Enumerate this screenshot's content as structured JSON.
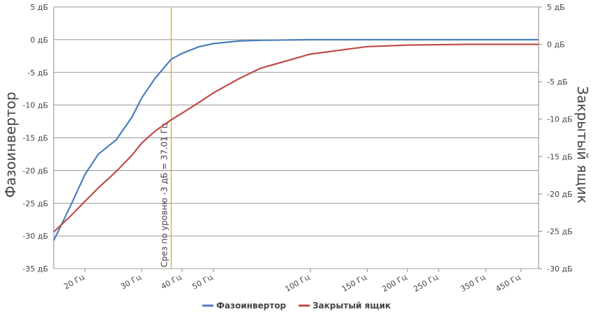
{
  "chart_data": {
    "type": "line",
    "log_x": true,
    "grid": true,
    "legend": "bottom",
    "y_label": "Фазоинвертор",
    "y2_label": "Закрытый ящик",
    "x": [
      16,
      18,
      20,
      22,
      25,
      28,
      30,
      33,
      37,
      40,
      45,
      50,
      60,
      70,
      100,
      150,
      200,
      300,
      510
    ],
    "series": [
      {
        "name": "Фазоинвертор",
        "color": "#4a7ebb",
        "axis": "y",
        "values": [
          -30.7,
          -25.5,
          -20.6,
          -17.5,
          -15.3,
          -11.8,
          -8.9,
          -5.9,
          -3,
          -2.1,
          -1.1,
          -0.6,
          -0.2,
          -0.1,
          0,
          0,
          0,
          0,
          0
        ]
      },
      {
        "name": "Закрытый ящик",
        "color": "#be4b48",
        "axis": "y2",
        "values": [
          -25.1,
          -23,
          -21,
          -19.2,
          -17,
          -14.8,
          -13.2,
          -11.6,
          -10.1,
          -9.2,
          -7.8,
          -6.5,
          -4.6,
          -3.2,
          -1.3,
          -0.3,
          -0.1,
          0,
          0
        ]
      }
    ],
    "cutoff": {
      "x": 37.01,
      "color": "#e0a030",
      "label": "Срез по уровню -3 дБ = 37.01 Гц"
    },
    "xlim": [
      16,
      510
    ],
    "xticks": [
      {
        "value": 20,
        "label": "20 Гц"
      },
      {
        "value": 30,
        "label": "30 Гц"
      },
      {
        "value": 40,
        "label": "40 Гц"
      },
      {
        "value": 50,
        "label": "50 Гц"
      },
      {
        "value": 100,
        "label": "100 Гц"
      },
      {
        "value": 150,
        "label": "150 Гц"
      },
      {
        "value": 200,
        "label": "200 Гц"
      },
      {
        "value": 250,
        "label": "250 Гц"
      },
      {
        "value": 350,
        "label": "350 Гц"
      },
      {
        "value": 450,
        "label": "450 Гц"
      }
    ],
    "ylim": [
      -35,
      5
    ],
    "yticks": [
      {
        "value": 5,
        "label": "5 дБ"
      },
      {
        "value": 0,
        "label": "0 дБ"
      },
      {
        "value": -5,
        "label": "-5 дБ"
      },
      {
        "value": -10,
        "label": "-10 дБ"
      },
      {
        "value": -15,
        "label": "-15 дБ"
      },
      {
        "value": -20,
        "label": "-20 дБ"
      },
      {
        "value": -25,
        "label": "-25 дБ"
      },
      {
        "value": -30,
        "label": "-30 дБ"
      },
      {
        "value": -35,
        "label": "-35 дБ"
      }
    ],
    "y2lim": [
      -30,
      5
    ],
    "y2ticks": [
      {
        "value": 5,
        "label": "5 дБ"
      },
      {
        "value": 0,
        "label": "0 дБ"
      },
      {
        "value": -5,
        "label": "-5 дБ"
      },
      {
        "value": -10,
        "label": "-10 дБ"
      },
      {
        "value": -15,
        "label": "-15 дБ"
      },
      {
        "value": -20,
        "label": "-20 дБ"
      },
      {
        "value": -25,
        "label": "-25 дБ"
      },
      {
        "value": -30,
        "label": "-30 дБ"
      }
    ]
  }
}
